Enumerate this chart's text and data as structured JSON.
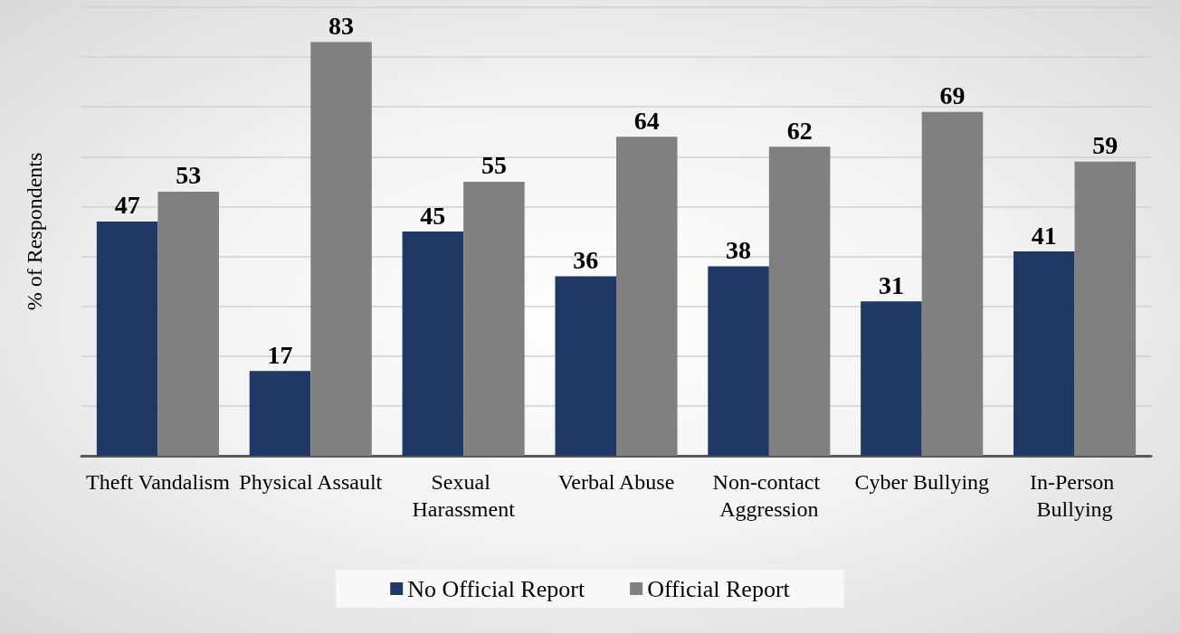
{
  "chart_data": {
    "type": "bar",
    "ylabel": "% of Respondents",
    "categories": [
      "Theft Vandalism",
      "Physical Assault",
      "Sexual Harassment",
      "Verbal Abuse",
      "Non-contact Aggression",
      "Cyber Bullying",
      "In-Person Bullying"
    ],
    "series": [
      {
        "name": "No Official Report",
        "color": "#1f3864",
        "values": [
          47,
          17,
          45,
          36,
          38,
          31,
          41
        ]
      },
      {
        "name": "Official Report",
        "color": "#808080",
        "values": [
          53,
          83,
          55,
          64,
          62,
          69,
          59
        ]
      }
    ],
    "ylim": [
      0,
      90
    ],
    "yticks": [
      {
        "value": 0,
        "label": null
      },
      {
        "value": 10,
        "label": null
      },
      {
        "value": 20,
        "label": null
      },
      {
        "value": 30,
        "label": null
      },
      {
        "value": 40,
        "label": null
      },
      {
        "value": 50,
        "label": null
      },
      {
        "value": 60,
        "label": null
      },
      {
        "value": 70,
        "label": null
      },
      {
        "value": 80,
        "label": null
      },
      {
        "value": 90,
        "label": null
      }
    ],
    "tick_labels": "x",
    "grid": "y",
    "legend": "bottom",
    "data_labels": true
  }
}
